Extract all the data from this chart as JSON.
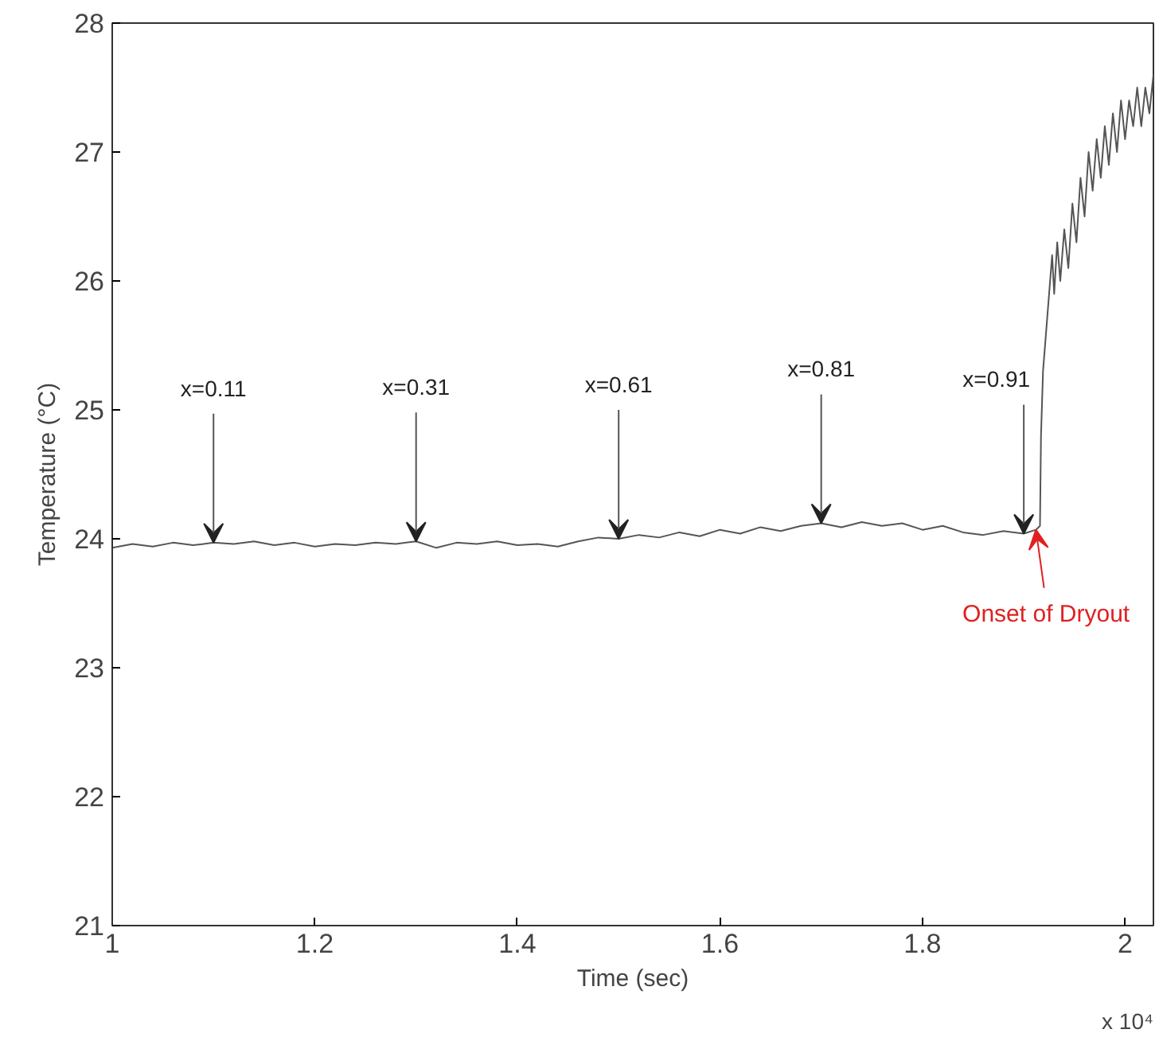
{
  "chart_data": {
    "type": "line",
    "xlabel": "Time (sec)",
    "ylabel": "Temperature (°C)",
    "xlim": [
      1,
      2.028
    ],
    "ylim": [
      21,
      28
    ],
    "xticks": [
      1,
      1.2,
      1.4,
      1.6,
      1.8,
      2
    ],
    "yticks": [
      21,
      22,
      23,
      24,
      25,
      26,
      27,
      28
    ],
    "grid": false,
    "marker": "none",
    "line_style": "solid",
    "series": [
      {
        "color": "#555555",
        "x": [
          1.0,
          1.02,
          1.04,
          1.06,
          1.08,
          1.1,
          1.12,
          1.14,
          1.16,
          1.18,
          1.2,
          1.22,
          1.24,
          1.26,
          1.28,
          1.3,
          1.32,
          1.34,
          1.36,
          1.38,
          1.4,
          1.42,
          1.44,
          1.46,
          1.48,
          1.5,
          1.52,
          1.54,
          1.56,
          1.58,
          1.6,
          1.62,
          1.64,
          1.66,
          1.68,
          1.7,
          1.72,
          1.74,
          1.76,
          1.78,
          1.8,
          1.82,
          1.84,
          1.86,
          1.88,
          1.9,
          1.912,
          1.916,
          1.917,
          1.919,
          1.922,
          1.925,
          1.928,
          1.93,
          1.933,
          1.936,
          1.94,
          1.944,
          1.948,
          1.952,
          1.956,
          1.96,
          1.964,
          1.968,
          1.972,
          1.976,
          1.98,
          1.984,
          1.988,
          1.992,
          1.996,
          2.0,
          2.004,
          2.008,
          2.012,
          2.016,
          2.02,
          2.024,
          2.028
        ],
        "values": [
          23.93,
          23.96,
          23.94,
          23.97,
          23.95,
          23.97,
          23.96,
          23.98,
          23.95,
          23.97,
          23.94,
          23.96,
          23.95,
          23.97,
          23.96,
          23.98,
          23.93,
          23.97,
          23.96,
          23.98,
          23.95,
          23.96,
          23.94,
          23.98,
          24.01,
          24.0,
          24.03,
          24.01,
          24.05,
          24.02,
          24.07,
          24.04,
          24.09,
          24.06,
          24.1,
          24.12,
          24.09,
          24.13,
          24.1,
          24.12,
          24.07,
          24.1,
          24.05,
          24.03,
          24.06,
          24.04,
          24.07,
          24.1,
          24.8,
          25.3,
          25.6,
          25.9,
          26.2,
          25.9,
          26.3,
          26.0,
          26.4,
          26.1,
          26.6,
          26.3,
          26.8,
          26.5,
          27.0,
          26.7,
          27.1,
          26.8,
          27.2,
          26.9,
          27.3,
          27.0,
          27.4,
          27.1,
          27.4,
          27.2,
          27.5,
          27.2,
          27.5,
          27.3,
          27.6
        ]
      }
    ],
    "annotations": [
      {
        "text": "x=0.11",
        "x": 1.1,
        "y": 23.97
      },
      {
        "text": "x=0.31",
        "x": 1.3,
        "y": 23.98
      },
      {
        "text": "x=0.61",
        "x": 1.5,
        "y": 24.0
      },
      {
        "text": "x=0.81",
        "x": 1.7,
        "y": 24.12
      },
      {
        "text": "x=0.91",
        "x": 1.9,
        "y": 24.04
      },
      {
        "text": "Onset of Dryout",
        "x": 1.912,
        "y": 24.07
      },
      "x 10⁴"
    ]
  }
}
